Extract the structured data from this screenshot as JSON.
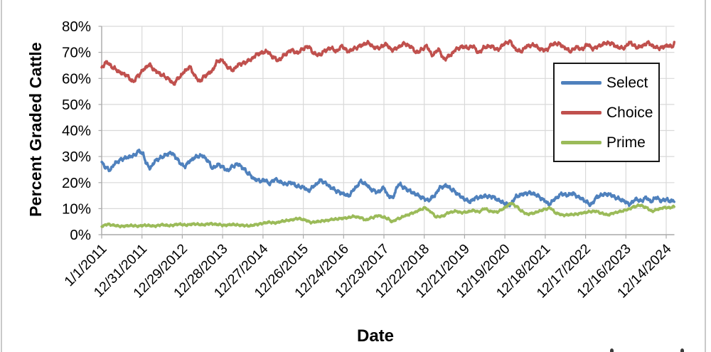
{
  "figure": {
    "y_axis_title": "Percent Graded Cattle",
    "x_axis_title": "Date",
    "y_tick_labels": [
      "80%",
      "70%",
      "60%",
      "50%",
      "40%",
      "30%",
      "20%",
      "10%",
      "0%"
    ],
    "x_tick_labels": [
      "1/1/2011",
      "12/31/2011",
      "12/29/2012",
      "12/28/2013",
      "12/27/2014",
      "12/26/2015",
      "12/24/2016",
      "12/23/2017",
      "12/22/2018",
      "12/21/2019",
      "12/19/2020",
      "12/18/2021",
      "12/17/2022",
      "12/16/2023",
      "12/14/2024"
    ],
    "legend": [
      {
        "label": "Select",
        "color": "#4F81BD"
      },
      {
        "label": "Choice",
        "color": "#C0504D"
      },
      {
        "label": "Prime",
        "color": "#9BBB59"
      }
    ],
    "grid_color": "#d9d9d9",
    "axis_color": "#ababab"
  },
  "chart_data": {
    "type": "line",
    "title": "",
    "xlabel": "Date",
    "ylabel": "Percent Graded Cattle",
    "ylim": [
      0,
      80
    ],
    "grid": true,
    "legend_position": "upper right",
    "x_units": "52-week tick index since 1/1/2011 (weekly data; tick i = x_tick_labels[i])",
    "x_tick_labels": [
      "1/1/2011",
      "12/31/2011",
      "12/29/2012",
      "12/28/2013",
      "12/27/2014",
      "12/26/2015",
      "12/24/2016",
      "12/23/2017",
      "12/22/2018",
      "12/21/2019",
      "12/19/2020",
      "12/18/2021",
      "12/17/2022",
      "12/16/2023",
      "12/14/2024"
    ],
    "series": [
      {
        "name": "Select",
        "color": "#4F81BD",
        "points": [
          [
            0,
            27.6
          ],
          [
            0.1,
            25.8
          ],
          [
            0.2,
            24.9
          ],
          [
            0.35,
            27.6
          ],
          [
            0.5,
            29.0
          ],
          [
            0.65,
            29.8
          ],
          [
            0.8,
            30.4
          ],
          [
            0.93,
            32.2
          ],
          [
            1.02,
            31.0
          ],
          [
            1.12,
            27.0
          ],
          [
            1.2,
            25.6
          ],
          [
            1.35,
            28.6
          ],
          [
            1.5,
            29.8
          ],
          [
            1.62,
            30.9
          ],
          [
            1.73,
            31.4
          ],
          [
            1.85,
            29.6
          ],
          [
            1.95,
            27.4
          ],
          [
            2.05,
            26.2
          ],
          [
            2.2,
            28.4
          ],
          [
            2.35,
            30.0
          ],
          [
            2.5,
            30.3
          ],
          [
            2.62,
            28.6
          ],
          [
            2.75,
            25.6
          ],
          [
            2.9,
            26.9
          ],
          [
            3.0,
            26.0
          ],
          [
            3.12,
            24.6
          ],
          [
            3.25,
            26.3
          ],
          [
            3.38,
            27.1
          ],
          [
            3.5,
            25.6
          ],
          [
            3.65,
            23.3
          ],
          [
            3.8,
            21.2
          ],
          [
            3.95,
            20.6
          ],
          [
            4.05,
            21.0
          ],
          [
            4.15,
            19.6
          ],
          [
            4.3,
            21.2
          ],
          [
            4.45,
            20.2
          ],
          [
            4.55,
            19.4
          ],
          [
            4.7,
            20.0
          ],
          [
            4.85,
            18.6
          ],
          [
            5.0,
            18.2
          ],
          [
            5.12,
            16.9
          ],
          [
            5.3,
            19.0
          ],
          [
            5.42,
            20.9
          ],
          [
            5.55,
            19.8
          ],
          [
            5.7,
            18.0
          ],
          [
            5.85,
            16.6
          ],
          [
            6.0,
            15.6
          ],
          [
            6.12,
            15.0
          ],
          [
            6.3,
            18.0
          ],
          [
            6.42,
            20.4
          ],
          [
            6.55,
            19.4
          ],
          [
            6.7,
            17.2
          ],
          [
            6.85,
            16.4
          ],
          [
            7.0,
            18.0
          ],
          [
            7.1,
            15.0
          ],
          [
            7.2,
            14.2
          ],
          [
            7.38,
            19.4
          ],
          [
            7.5,
            18.0
          ],
          [
            7.62,
            16.9
          ],
          [
            7.78,
            15.6
          ],
          [
            7.95,
            14.2
          ],
          [
            8.1,
            13.2
          ],
          [
            8.25,
            15.0
          ],
          [
            8.4,
            18.2
          ],
          [
            8.55,
            18.8
          ],
          [
            8.7,
            17.2
          ],
          [
            8.85,
            15.3
          ],
          [
            9.0,
            13.6
          ],
          [
            9.12,
            12.7
          ],
          [
            9.3,
            14.2
          ],
          [
            9.5,
            14.8
          ],
          [
            9.68,
            14.6
          ],
          [
            9.85,
            13.2
          ],
          [
            10.0,
            11.9
          ],
          [
            10.12,
            11.5
          ],
          [
            10.3,
            14.8
          ],
          [
            10.45,
            15.6
          ],
          [
            10.62,
            16.1
          ],
          [
            10.78,
            15.3
          ],
          [
            10.95,
            13.4
          ],
          [
            11.1,
            11.7
          ],
          [
            11.25,
            13.8
          ],
          [
            11.4,
            15.6
          ],
          [
            11.55,
            15.2
          ],
          [
            11.68,
            15.8
          ],
          [
            11.85,
            14.3
          ],
          [
            12.0,
            12.9
          ],
          [
            12.12,
            11.5
          ],
          [
            12.3,
            14.6
          ],
          [
            12.45,
            15.5
          ],
          [
            12.6,
            15.4
          ],
          [
            12.78,
            14.0
          ],
          [
            12.95,
            13.0
          ],
          [
            13.08,
            11.7
          ],
          [
            13.25,
            13.6
          ],
          [
            13.38,
            13.0
          ],
          [
            13.5,
            14.2
          ],
          [
            13.62,
            12.8
          ],
          [
            13.75,
            14.2
          ],
          [
            13.88,
            13.0
          ],
          [
            14.0,
            13.5
          ],
          [
            14.1,
            12.9
          ],
          [
            14.2,
            13.1
          ]
        ]
      },
      {
        "name": "Choice",
        "color": "#C0504D",
        "points": [
          [
            0,
            64.3
          ],
          [
            0.12,
            66.2
          ],
          [
            0.3,
            64.0
          ],
          [
            0.45,
            62.3
          ],
          [
            0.6,
            61.3
          ],
          [
            0.78,
            58.8
          ],
          [
            0.92,
            61.3
          ],
          [
            1.05,
            63.6
          ],
          [
            1.18,
            65.3
          ],
          [
            1.32,
            63.0
          ],
          [
            1.5,
            61.3
          ],
          [
            1.65,
            59.9
          ],
          [
            1.78,
            57.9
          ],
          [
            1.92,
            60.4
          ],
          [
            2.08,
            63.0
          ],
          [
            2.18,
            64.4
          ],
          [
            2.32,
            60.9
          ],
          [
            2.42,
            58.9
          ],
          [
            2.58,
            61.2
          ],
          [
            2.72,
            62.6
          ],
          [
            2.88,
            66.6
          ],
          [
            3.0,
            66.9
          ],
          [
            3.12,
            64.3
          ],
          [
            3.25,
            63.2
          ],
          [
            3.4,
            65.3
          ],
          [
            3.55,
            66.1
          ],
          [
            3.7,
            67.3
          ],
          [
            3.85,
            69.2
          ],
          [
            4.0,
            70.0
          ],
          [
            4.1,
            70.3
          ],
          [
            4.25,
            68.2
          ],
          [
            4.38,
            66.9
          ],
          [
            4.55,
            69.2
          ],
          [
            4.7,
            70.9
          ],
          [
            4.85,
            69.8
          ],
          [
            5.0,
            71.4
          ],
          [
            5.12,
            72.3
          ],
          [
            5.28,
            69.4
          ],
          [
            5.4,
            69.0
          ],
          [
            5.55,
            70.7
          ],
          [
            5.68,
            71.7
          ],
          [
            5.82,
            70.4
          ],
          [
            5.95,
            72.3
          ],
          [
            6.12,
            70.4
          ],
          [
            6.28,
            71.6
          ],
          [
            6.45,
            72.7
          ],
          [
            6.6,
            73.7
          ],
          [
            6.75,
            71.9
          ],
          [
            6.88,
            71.7
          ],
          [
            7.05,
            73.1
          ],
          [
            7.2,
            70.9
          ],
          [
            7.35,
            71.9
          ],
          [
            7.5,
            73.4
          ],
          [
            7.65,
            72.3
          ],
          [
            7.82,
            69.9
          ],
          [
            7.95,
            71.2
          ],
          [
            8.05,
            72.4
          ],
          [
            8.2,
            69.0
          ],
          [
            8.35,
            71.0
          ],
          [
            8.5,
            67.4
          ],
          [
            8.65,
            69.0
          ],
          [
            8.8,
            71.3
          ],
          [
            8.95,
            72.2
          ],
          [
            9.1,
            71.7
          ],
          [
            9.2,
            72.4
          ],
          [
            9.35,
            69.9
          ],
          [
            9.5,
            72.0
          ],
          [
            9.65,
            72.4
          ],
          [
            9.82,
            71.1
          ],
          [
            10.0,
            73.4
          ],
          [
            10.12,
            74.2
          ],
          [
            10.28,
            71.0
          ],
          [
            10.4,
            70.4
          ],
          [
            10.55,
            72.4
          ],
          [
            10.72,
            72.8
          ],
          [
            10.9,
            71.1
          ],
          [
            11.02,
            70.9
          ],
          [
            11.18,
            73.2
          ],
          [
            11.32,
            73.4
          ],
          [
            11.5,
            71.7
          ],
          [
            11.62,
            70.4
          ],
          [
            11.78,
            72.0
          ],
          [
            11.9,
            71.1
          ],
          [
            12.05,
            73.0
          ],
          [
            12.18,
            71.4
          ],
          [
            12.32,
            72.4
          ],
          [
            12.5,
            73.6
          ],
          [
            12.65,
            73.4
          ],
          [
            12.8,
            71.9
          ],
          [
            12.95,
            71.7
          ],
          [
            13.1,
            73.7
          ],
          [
            13.28,
            71.9
          ],
          [
            13.42,
            72.6
          ],
          [
            13.55,
            73.7
          ],
          [
            13.7,
            72.2
          ],
          [
            13.82,
            71.6
          ],
          [
            13.95,
            72.2
          ],
          [
            14.05,
            72.6
          ],
          [
            14.15,
            72.2
          ],
          [
            14.2,
            73.3
          ]
        ]
      },
      {
        "name": "Prime",
        "color": "#9BBB59",
        "points": [
          [
            0,
            3.2
          ],
          [
            0.15,
            4.0
          ],
          [
            0.3,
            3.6
          ],
          [
            0.5,
            3.2
          ],
          [
            0.7,
            3.5
          ],
          [
            0.9,
            3.3
          ],
          [
            1.1,
            3.6
          ],
          [
            1.3,
            3.3
          ],
          [
            1.5,
            3.8
          ],
          [
            1.7,
            3.5
          ],
          [
            1.9,
            4.0
          ],
          [
            2.1,
            3.7
          ],
          [
            2.3,
            4.1
          ],
          [
            2.5,
            3.8
          ],
          [
            2.7,
            4.2
          ],
          [
            2.9,
            3.9
          ],
          [
            3.05,
            3.6
          ],
          [
            3.25,
            3.9
          ],
          [
            3.45,
            3.6
          ],
          [
            3.65,
            3.4
          ],
          [
            3.85,
            3.9
          ],
          [
            4.0,
            4.4
          ],
          [
            4.15,
            4.8
          ],
          [
            4.3,
            4.5
          ],
          [
            4.5,
            5.2
          ],
          [
            4.68,
            5.6
          ],
          [
            4.88,
            6.2
          ],
          [
            5.05,
            5.6
          ],
          [
            5.2,
            4.7
          ],
          [
            5.38,
            5.1
          ],
          [
            5.55,
            5.4
          ],
          [
            5.75,
            5.9
          ],
          [
            5.95,
            6.2
          ],
          [
            6.1,
            6.5
          ],
          [
            6.25,
            7.0
          ],
          [
            6.4,
            6.6
          ],
          [
            6.55,
            5.7
          ],
          [
            6.7,
            6.5
          ],
          [
            6.85,
            7.3
          ],
          [
            7.0,
            6.7
          ],
          [
            7.1,
            6.1
          ],
          [
            7.2,
            5.0
          ],
          [
            7.35,
            6.1
          ],
          [
            7.55,
            7.4
          ],
          [
            7.75,
            8.5
          ],
          [
            7.9,
            9.6
          ],
          [
            8.02,
            10.3
          ],
          [
            8.15,
            8.9
          ],
          [
            8.3,
            6.8
          ],
          [
            8.45,
            7.1
          ],
          [
            8.62,
            8.5
          ],
          [
            8.78,
            9.0
          ],
          [
            8.92,
            8.5
          ],
          [
            9.05,
            8.7
          ],
          [
            9.2,
            9.3
          ],
          [
            9.35,
            8.8
          ],
          [
            9.5,
            10.0
          ],
          [
            9.65,
            8.9
          ],
          [
            9.8,
            8.7
          ],
          [
            9.95,
            9.8
          ],
          [
            10.05,
            11.0
          ],
          [
            10.15,
            12.1
          ],
          [
            10.28,
            10.9
          ],
          [
            10.42,
            9.0
          ],
          [
            10.55,
            7.9
          ],
          [
            10.7,
            8.2
          ],
          [
            10.85,
            9.0
          ],
          [
            11.0,
            9.8
          ],
          [
            11.12,
            10.2
          ],
          [
            11.28,
            8.2
          ],
          [
            11.45,
            7.5
          ],
          [
            11.6,
            7.7
          ],
          [
            11.78,
            7.9
          ],
          [
            11.95,
            8.4
          ],
          [
            12.1,
            8.8
          ],
          [
            12.25,
            9.0
          ],
          [
            12.4,
            8.2
          ],
          [
            12.55,
            7.6
          ],
          [
            12.72,
            8.4
          ],
          [
            12.88,
            9.0
          ],
          [
            13.05,
            9.7
          ],
          [
            13.2,
            10.7
          ],
          [
            13.35,
            11.3
          ],
          [
            13.5,
            10.4
          ],
          [
            13.65,
            9.0
          ],
          [
            13.8,
            9.8
          ],
          [
            13.95,
            10.4
          ],
          [
            14.1,
            10.4
          ],
          [
            14.2,
            10.8
          ]
        ]
      }
    ]
  }
}
